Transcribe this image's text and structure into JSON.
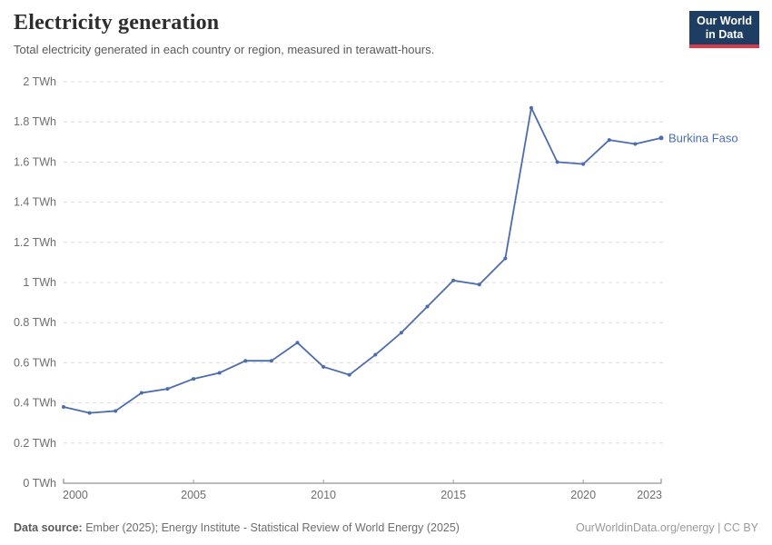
{
  "header": {
    "title": "Electricity generation",
    "subtitle": "Total electricity generated in each country or region, measured in terawatt-hours."
  },
  "logo": {
    "line1": "Our World",
    "line2": "in Data",
    "bg_color": "#1d3d63",
    "bar_color": "#d73c4c"
  },
  "chart_data": {
    "type": "line",
    "title": "Electricity generation",
    "ylabel": "TWh",
    "xlim": [
      2000,
      2023
    ],
    "ylim": [
      0,
      2
    ],
    "grid": "horizontal-dashed",
    "grid_color": "#dcdcdc",
    "axis_text_color": "#6e6e6e",
    "axis_line_color": "#787878",
    "x_ticks": [
      2000,
      2005,
      2010,
      2015,
      2020,
      2023
    ],
    "x_tick_labels": [
      "2000",
      "2005",
      "2010",
      "2015",
      "2020",
      "2023"
    ],
    "y_ticks": [
      0,
      0.2,
      0.4,
      0.6,
      0.8,
      1,
      1.2,
      1.4,
      1.6,
      1.8,
      2
    ],
    "y_tick_labels": [
      "0 TWh",
      "0.2 TWh",
      "0.4 TWh",
      "0.6 TWh",
      "0.8 TWh",
      "1 TWh",
      "1.2 TWh",
      "1.4 TWh",
      "1.6 TWh",
      "1.8 TWh",
      "2 TWh"
    ],
    "series": [
      {
        "name": "Burkina Faso",
        "color": "#4c6cad",
        "x": [
          2000,
          2001,
          2002,
          2003,
          2004,
          2005,
          2006,
          2007,
          2008,
          2009,
          2010,
          2011,
          2012,
          2013,
          2014,
          2015,
          2016,
          2017,
          2018,
          2019,
          2020,
          2021,
          2022,
          2023
        ],
        "values": [
          0.38,
          0.35,
          0.36,
          0.45,
          0.47,
          0.52,
          0.55,
          0.61,
          0.61,
          0.7,
          0.58,
          0.54,
          0.64,
          0.75,
          0.88,
          1.01,
          0.99,
          1.12,
          1.87,
          1.6,
          1.59,
          1.71,
          1.69,
          1.72
        ]
      }
    ],
    "legend_position": "end-of-line-label"
  },
  "footer": {
    "source_label": "Data source:",
    "source_text": "Ember (2025); Energy Institute - Statistical Review of World Energy (2025)",
    "right_text": "OurWorldinData.org/energy | CC BY"
  }
}
